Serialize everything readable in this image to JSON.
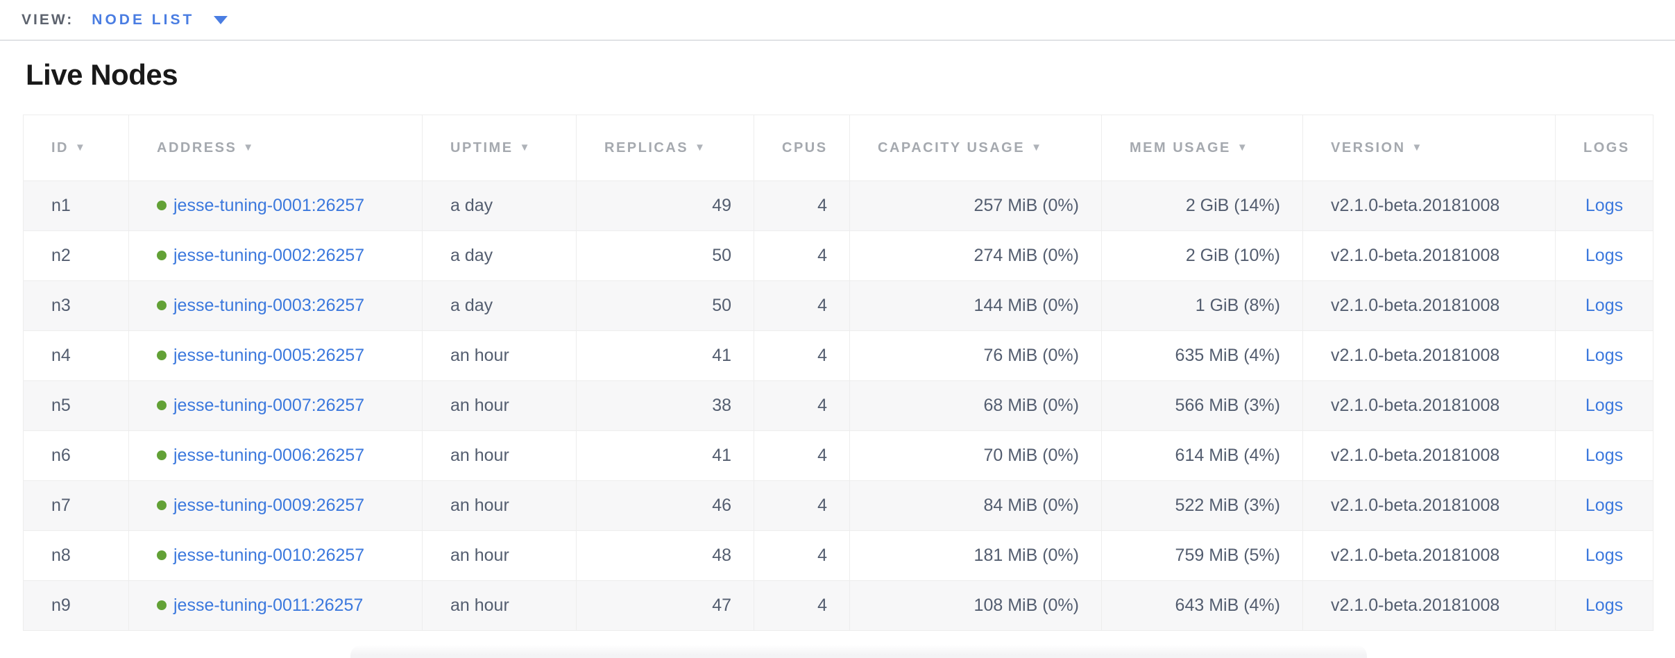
{
  "view_bar": {
    "label": "VIEW:",
    "selected_view": "NODE LIST"
  },
  "section": {
    "title": "Live Nodes"
  },
  "icons": {
    "sort_desc": "▼",
    "dropdown_caret": "▼",
    "node_health_dot": "healthy-green-dot"
  },
  "colors": {
    "accent_blue": "#4a7de2",
    "link_blue": "#3b78dd",
    "healthy_green": "#62a136",
    "header_gray": "#a5a9af",
    "cell_text": "#535d6f",
    "view_label_gray": "#5d636e",
    "title_black": "#191919",
    "row_alt_bg": "#f7f7f8",
    "border_gray": "#e7e7e7"
  },
  "table": {
    "columns": [
      {
        "key": "id",
        "label": "ID",
        "sortable": true,
        "align": "left"
      },
      {
        "key": "address",
        "label": "ADDRESS",
        "sortable": true,
        "align": "left"
      },
      {
        "key": "uptime",
        "label": "UPTIME",
        "sortable": true,
        "align": "left"
      },
      {
        "key": "replicas",
        "label": "REPLICAS",
        "sortable": true,
        "align": "right"
      },
      {
        "key": "cpus",
        "label": "CPUS",
        "sortable": false,
        "align": "right"
      },
      {
        "key": "capacity",
        "label": "CAPACITY USAGE",
        "sortable": true,
        "align": "right"
      },
      {
        "key": "mem",
        "label": "MEM USAGE",
        "sortable": true,
        "align": "right"
      },
      {
        "key": "version",
        "label": "VERSION",
        "sortable": true,
        "align": "left"
      },
      {
        "key": "logs",
        "label": "LOGS",
        "sortable": false,
        "align": "center"
      }
    ],
    "rows": [
      {
        "id": "n1",
        "status": "healthy",
        "address": "jesse-tuning-0001:26257",
        "uptime": "a day",
        "replicas": "49",
        "cpus": "4",
        "capacity_usage": "257 MiB (0%)",
        "mem_usage": "2 GiB (14%)",
        "version": "v2.1.0-beta.20181008",
        "logs_label": "Logs"
      },
      {
        "id": "n2",
        "status": "healthy",
        "address": "jesse-tuning-0002:26257",
        "uptime": "a day",
        "replicas": "50",
        "cpus": "4",
        "capacity_usage": "274 MiB (0%)",
        "mem_usage": "2 GiB (10%)",
        "version": "v2.1.0-beta.20181008",
        "logs_label": "Logs"
      },
      {
        "id": "n3",
        "status": "healthy",
        "address": "jesse-tuning-0003:26257",
        "uptime": "a day",
        "replicas": "50",
        "cpus": "4",
        "capacity_usage": "144 MiB (0%)",
        "mem_usage": "1 GiB (8%)",
        "version": "v2.1.0-beta.20181008",
        "logs_label": "Logs"
      },
      {
        "id": "n4",
        "status": "healthy",
        "address": "jesse-tuning-0005:26257",
        "uptime": "an hour",
        "replicas": "41",
        "cpus": "4",
        "capacity_usage": "76 MiB (0%)",
        "mem_usage": "635 MiB (4%)",
        "version": "v2.1.0-beta.20181008",
        "logs_label": "Logs"
      },
      {
        "id": "n5",
        "status": "healthy",
        "address": "jesse-tuning-0007:26257",
        "uptime": "an hour",
        "replicas": "38",
        "cpus": "4",
        "capacity_usage": "68 MiB (0%)",
        "mem_usage": "566 MiB (3%)",
        "version": "v2.1.0-beta.20181008",
        "logs_label": "Logs"
      },
      {
        "id": "n6",
        "status": "healthy",
        "address": "jesse-tuning-0006:26257",
        "uptime": "an hour",
        "replicas": "41",
        "cpus": "4",
        "capacity_usage": "70 MiB (0%)",
        "mem_usage": "614 MiB (4%)",
        "version": "v2.1.0-beta.20181008",
        "logs_label": "Logs"
      },
      {
        "id": "n7",
        "status": "healthy",
        "address": "jesse-tuning-0009:26257",
        "uptime": "an hour",
        "replicas": "46",
        "cpus": "4",
        "capacity_usage": "84 MiB (0%)",
        "mem_usage": "522 MiB (3%)",
        "version": "v2.1.0-beta.20181008",
        "logs_label": "Logs"
      },
      {
        "id": "n8",
        "status": "healthy",
        "address": "jesse-tuning-0010:26257",
        "uptime": "an hour",
        "replicas": "48",
        "cpus": "4",
        "capacity_usage": "181 MiB (0%)",
        "mem_usage": "759 MiB (5%)",
        "version": "v2.1.0-beta.20181008",
        "logs_label": "Logs"
      },
      {
        "id": "n9",
        "status": "healthy",
        "address": "jesse-tuning-0011:26257",
        "uptime": "an hour",
        "replicas": "47",
        "cpus": "4",
        "capacity_usage": "108 MiB (0%)",
        "mem_usage": "643 MiB (4%)",
        "version": "v2.1.0-beta.20181008",
        "logs_label": "Logs"
      }
    ]
  }
}
